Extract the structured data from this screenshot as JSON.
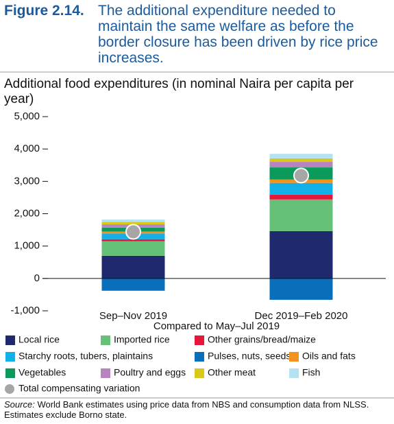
{
  "figure_label": "Figure 2.14.",
  "chart_data": {
    "type": "stacked-bar",
    "title": "The additional expenditure needed to maintain the same welfare as before the border closure has been driven by rice price increases.",
    "subtitle": "Additional food expenditures (in nominal Naira per capita per year)",
    "x_label": "Compared to May–Jul 2019",
    "categories": [
      "Sep–Nov 2019",
      "Dec 2019–Feb 2020"
    ],
    "series": [
      {
        "name": "Local rice",
        "color": "#1f2a6e",
        "values": [
          700,
          1460
        ]
      },
      {
        "name": "Imported rice",
        "color": "#66c178",
        "values": [
          450,
          980
        ]
      },
      {
        "name": "Other grains/bread/maize",
        "color": "#e4163a",
        "values": [
          60,
          150
        ]
      },
      {
        "name": "Starchy roots, tubers, plaintains",
        "color": "#12b0e8",
        "values": [
          180,
          360
        ]
      },
      {
        "name": "Pulses, nuts, seeds",
        "color": "#0a6fba",
        "values": [
          -380,
          -660
        ]
      },
      {
        "name": "Oils and fats",
        "color": "#f5921e",
        "values": [
          60,
          110
        ]
      },
      {
        "name": "Vegetables",
        "color": "#0a9b5a",
        "values": [
          120,
          370
        ]
      },
      {
        "name": "Poultry and eggs",
        "color": "#b784c0",
        "values": [
          100,
          170
        ]
      },
      {
        "name": "Other meat",
        "color": "#d8c81a",
        "values": [
          80,
          110
        ]
      },
      {
        "name": "Fish",
        "color": "#b5e2f0",
        "values": [
          70,
          140
        ]
      }
    ],
    "total": {
      "name": "Total compensating variation",
      "color": "#a6a6a6",
      "values": [
        1440,
        3180
      ]
    },
    "ylim": [
      -1000,
      5000
    ],
    "yticks": [
      {
        "value": -1000,
        "label": "-1,000"
      },
      0,
      {
        "value": 1000,
        "label": "1,000"
      },
      {
        "value": 2000,
        "label": "2,000"
      },
      {
        "value": 3000,
        "label": "3,000"
      },
      {
        "value": 4000,
        "label": "4,000"
      },
      {
        "value": 5000,
        "label": "5,000"
      }
    ]
  },
  "source": {
    "label": "Source:",
    "text": "World Bank estimates using price data from NBS and consumption data from NLSS. Estimates exclude Borno state."
  }
}
